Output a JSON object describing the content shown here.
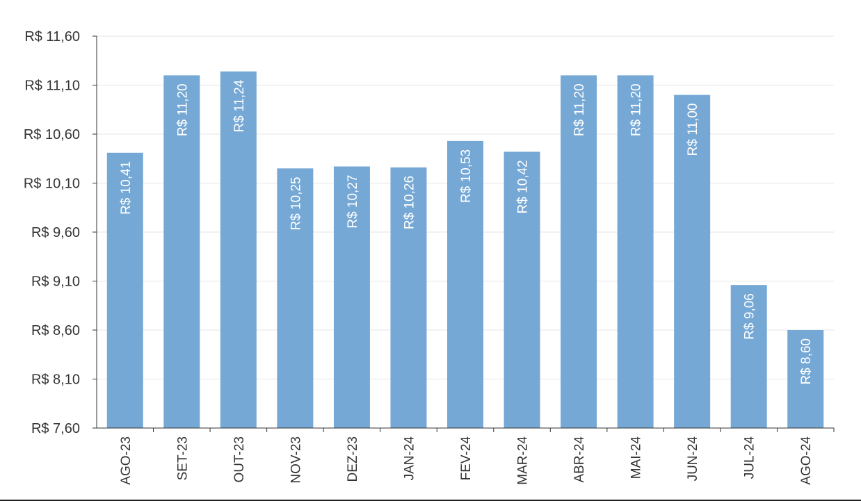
{
  "chart_data": {
    "type": "bar",
    "categories": [
      "AGO-23",
      "SET-23",
      "OUT-23",
      "NOV-23",
      "DEZ-23",
      "JAN-24",
      "FEV-24",
      "MAR-24",
      "ABR-24",
      "MAI-24",
      "JUN-24",
      "JUL-24",
      "AGO-24"
    ],
    "values": [
      10.41,
      11.2,
      11.24,
      10.25,
      10.27,
      10.26,
      10.53,
      10.42,
      11.2,
      11.2,
      11.0,
      9.06,
      8.6
    ],
    "data_labels": [
      "R$ 10,41",
      "R$ 11,20",
      "R$ 11,24",
      "R$ 10,25",
      "R$ 10,27",
      "R$ 10,26",
      "R$ 10,53",
      "R$ 10,42",
      "R$ 11,20",
      "R$ 11,20",
      "R$ 11,00",
      "R$ 9,06",
      "R$ 8,60"
    ],
    "ylim": [
      7.6,
      11.6
    ],
    "yticks": [
      7.6,
      8.1,
      8.6,
      9.1,
      9.6,
      10.1,
      10.6,
      11.1,
      11.6
    ],
    "ytick_labels": [
      "R$ 7,60",
      "R$ 8,10",
      "R$ 8,60",
      "R$ 9,10",
      "R$ 9,60",
      "R$ 10,10",
      "R$ 10,60",
      "R$ 11,10",
      "R$ 11,60"
    ],
    "grid": true,
    "bar_color": "#76a8d5",
    "grid_color": "#e6e6e6",
    "axis_color": "#333333"
  }
}
